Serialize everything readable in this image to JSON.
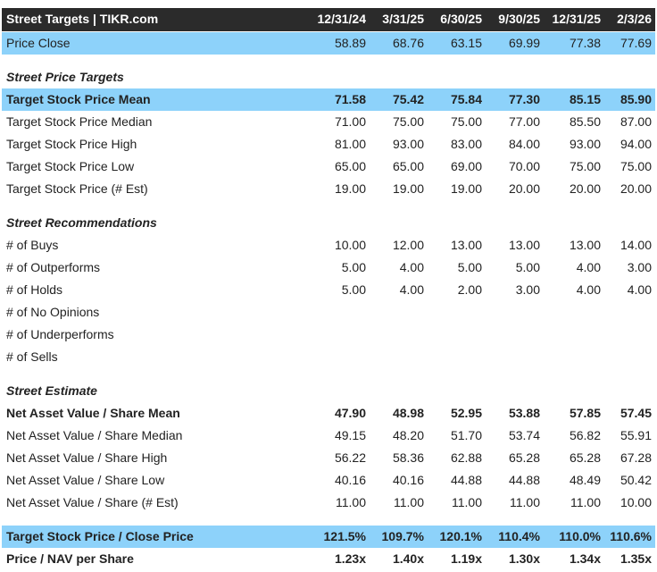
{
  "header": {
    "title": "Street Targets | TIKR.com",
    "columns": [
      "12/31/24",
      "3/31/25",
      "6/30/25",
      "9/30/25",
      "12/31/25",
      "2/3/26"
    ]
  },
  "price_close": {
    "label": "Price Close",
    "values": [
      "58.89",
      "68.76",
      "63.15",
      "69.99",
      "77.38",
      "77.69"
    ]
  },
  "sections": [
    {
      "title": "Street Price Targets",
      "rows": [
        {
          "label": "Target Stock Price Mean",
          "values": [
            "71.58",
            "75.42",
            "75.84",
            "77.30",
            "85.15",
            "85.90"
          ]
        },
        {
          "label": "Target Stock Price Median",
          "values": [
            "71.00",
            "75.00",
            "75.00",
            "77.00",
            "85.50",
            "87.00"
          ]
        },
        {
          "label": "Target Stock Price High",
          "values": [
            "81.00",
            "93.00",
            "83.00",
            "84.00",
            "93.00",
            "94.00"
          ]
        },
        {
          "label": "Target Stock Price Low",
          "values": [
            "65.00",
            "65.00",
            "69.00",
            "70.00",
            "75.00",
            "75.00"
          ]
        },
        {
          "label": "Target Stock Price (# Est)",
          "values": [
            "19.00",
            "19.00",
            "19.00",
            "20.00",
            "20.00",
            "20.00"
          ]
        }
      ]
    },
    {
      "title": "Street Recommendations",
      "rows": [
        {
          "label": "# of Buys",
          "values": [
            "10.00",
            "12.00",
            "13.00",
            "13.00",
            "13.00",
            "14.00"
          ]
        },
        {
          "label": "# of Outperforms",
          "values": [
            "5.00",
            "4.00",
            "5.00",
            "5.00",
            "4.00",
            "3.00"
          ]
        },
        {
          "label": "# of Holds",
          "values": [
            "5.00",
            "4.00",
            "2.00",
            "3.00",
            "4.00",
            "4.00"
          ]
        },
        {
          "label": "# of No Opinions"
        },
        {
          "label": "# of Underperforms"
        },
        {
          "label": "# of Sells"
        }
      ]
    },
    {
      "title": "Street Estimate",
      "rows": [
        {
          "label": "Net Asset Value / Share Mean",
          "values": [
            "47.90",
            "48.98",
            "52.95",
            "53.88",
            "57.85",
            "57.45"
          ]
        },
        {
          "label": "Net Asset Value / Share Median",
          "values": [
            "49.15",
            "48.20",
            "51.70",
            "53.74",
            "56.82",
            "55.91"
          ]
        },
        {
          "label": "Net Asset Value / Share High",
          "values": [
            "56.22",
            "58.36",
            "62.88",
            "65.28",
            "65.28",
            "67.28"
          ]
        },
        {
          "label": "Net Asset Value / Share Low",
          "values": [
            "40.16",
            "40.16",
            "44.88",
            "44.88",
            "48.49",
            "50.42"
          ]
        },
        {
          "label": "Net Asset Value / Share (# Est)",
          "values": [
            "11.00",
            "11.00",
            "11.00",
            "11.00",
            "11.00",
            "10.00"
          ]
        }
      ]
    }
  ],
  "ratios": [
    {
      "label": "Target Stock Price / Close Price",
      "values": [
        "121.5%",
        "109.7%",
        "120.1%",
        "110.4%",
        "110.0%",
        "110.6%"
      ]
    },
    {
      "label": "Price / NAV per Share",
      "values": [
        "1.23x",
        "1.40x",
        "1.19x",
        "1.30x",
        "1.34x",
        "1.35x"
      ]
    }
  ]
}
